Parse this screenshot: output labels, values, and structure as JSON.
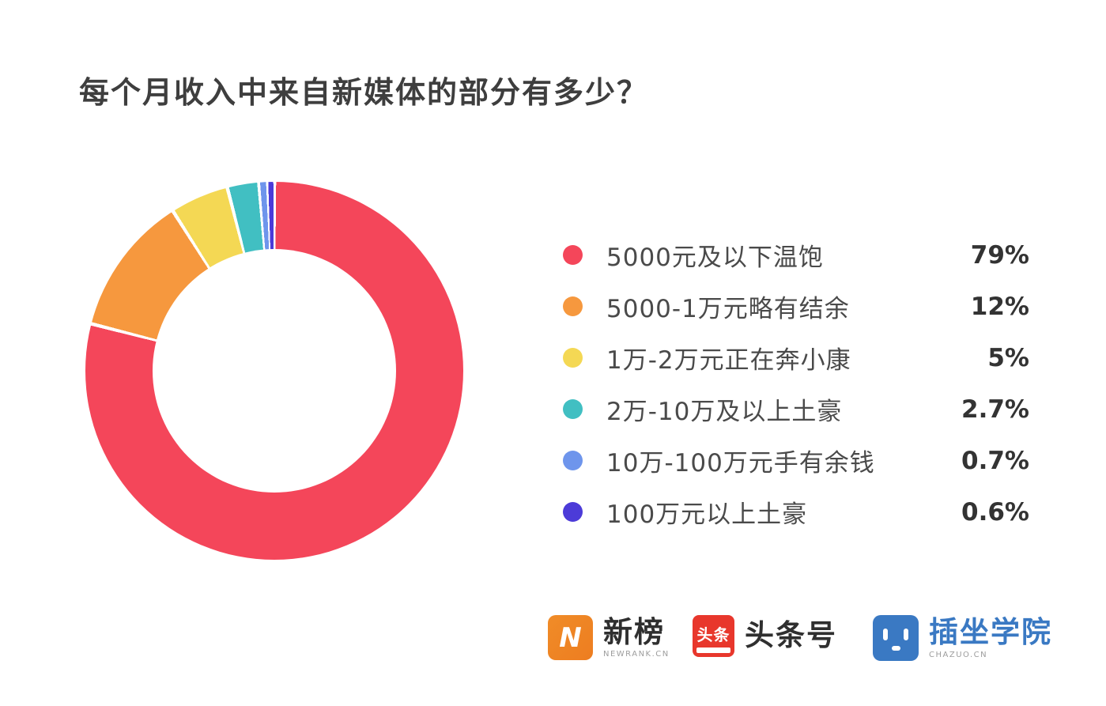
{
  "title": "每个月收入中来自新媒体的部分有多少？",
  "chart_data": {
    "type": "pie",
    "subtype": "donut",
    "title": "每个月收入中来自新媒体的部分有多少？",
    "start_angle_deg": 0,
    "direction": "clockwise",
    "legend_position": "right",
    "gap_color": "#ffffff",
    "series": [
      {
        "label": "5000元及以下温饱",
        "value": 79,
        "display": "79%",
        "color": "#F4465A"
      },
      {
        "label": "5000-1万元略有结余",
        "value": 12,
        "display": "12%",
        "color": "#F6983E"
      },
      {
        "label": "1万-2万元正在奔小康",
        "value": 5,
        "display": "5%",
        "color": "#F4D854"
      },
      {
        "label": "2万-10万及以上土豪",
        "value": 2.7,
        "display": "2.7%",
        "color": "#41BFC2"
      },
      {
        "label": "10万-100万元手有余钱",
        "value": 0.7,
        "display": "0.7%",
        "color": "#6E95EC"
      },
      {
        "label": "100万元以上土豪",
        "value": 0.6,
        "display": "0.6%",
        "color": "#4C3BD8"
      }
    ]
  },
  "footer": {
    "newrank": {
      "name": "新榜",
      "subtext": "NEWRANK.CN",
      "icon_letter": "N",
      "brand_color": "#F08C28",
      "brand_color2": "#ED7D20"
    },
    "toutiao": {
      "name": "头条号",
      "icon_text": "头条",
      "brand_color": "#E8372C"
    },
    "chazuo": {
      "name": "插坐学院",
      "subtext": "CHAZUO.CN",
      "brand_color": "#3A79C3"
    }
  }
}
